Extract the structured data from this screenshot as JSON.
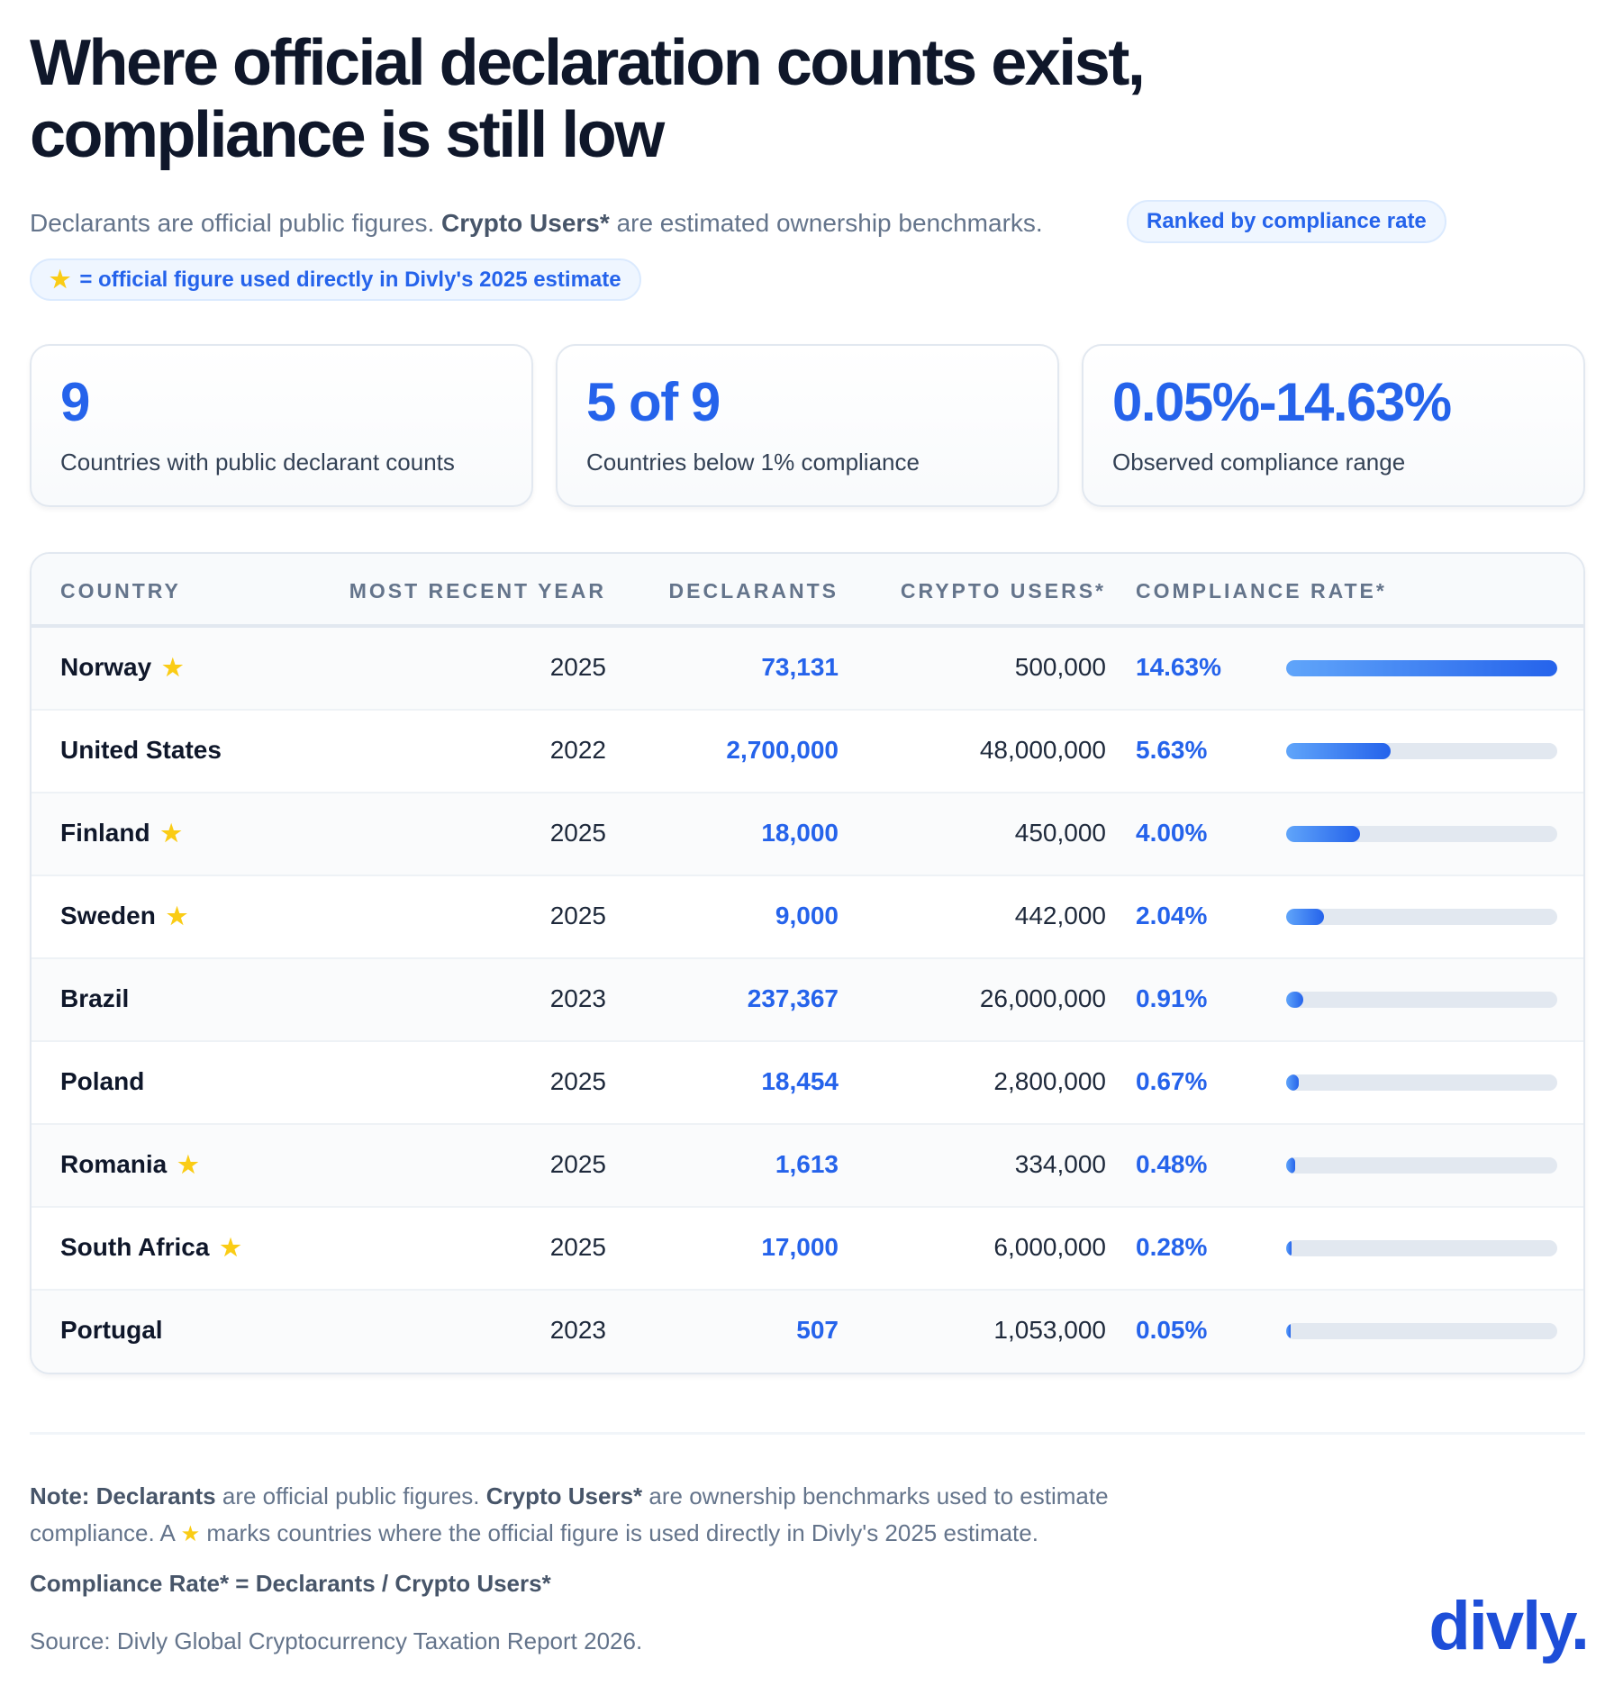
{
  "title": "Where official declaration counts exist, compliance is still low",
  "subtitle": {
    "part1": "Declarants are official public figures.",
    "bold": "Crypto Users*",
    "part2": "are estimated ownership benchmarks."
  },
  "ranked_pill": "Ranked by compliance rate",
  "star_pill": "= official figure used directly in Divly's 2025 estimate",
  "cards": [
    {
      "value": "9",
      "label": "Countries with public declarant counts"
    },
    {
      "value": "5 of 9",
      "label": "Countries below 1% compliance"
    },
    {
      "value": "0.05%-14.63%",
      "label": "Observed compliance range"
    }
  ],
  "colors": {
    "accent": "#2563eb",
    "star": "#facc15",
    "track": "#e2e8f0"
  },
  "chart_data": {
    "type": "table",
    "columns": [
      "COUNTRY",
      "MOST RECENT YEAR",
      "DECLARANTS",
      "CRYPTO USERS*",
      "COMPLIANCE RATE*"
    ],
    "bar_max": 14.63,
    "rows": [
      {
        "country": "Norway",
        "star": true,
        "year": "2025",
        "declarants": "73,131",
        "users": "500,000",
        "rate_label": "14.63%",
        "rate": 14.63
      },
      {
        "country": "United States",
        "star": false,
        "year": "2022",
        "declarants": "2,700,000",
        "users": "48,000,000",
        "rate_label": "5.63%",
        "rate": 5.63
      },
      {
        "country": "Finland",
        "star": true,
        "year": "2025",
        "declarants": "18,000",
        "users": "450,000",
        "rate_label": "4.00%",
        "rate": 4.0
      },
      {
        "country": "Sweden",
        "star": true,
        "year": "2025",
        "declarants": "9,000",
        "users": "442,000",
        "rate_label": "2.04%",
        "rate": 2.04
      },
      {
        "country": "Brazil",
        "star": false,
        "year": "2023",
        "declarants": "237,367",
        "users": "26,000,000",
        "rate_label": "0.91%",
        "rate": 0.91
      },
      {
        "country": "Poland",
        "star": false,
        "year": "2025",
        "declarants": "18,454",
        "users": "2,800,000",
        "rate_label": "0.67%",
        "rate": 0.67
      },
      {
        "country": "Romania",
        "star": true,
        "year": "2025",
        "declarants": "1,613",
        "users": "334,000",
        "rate_label": "0.48%",
        "rate": 0.48
      },
      {
        "country": "South Africa",
        "star": true,
        "year": "2025",
        "declarants": "17,000",
        "users": "6,000,000",
        "rate_label": "0.28%",
        "rate": 0.28
      },
      {
        "country": "Portugal",
        "star": false,
        "year": "2023",
        "declarants": "507",
        "users": "1,053,000",
        "rate_label": "0.05%",
        "rate": 0.05
      }
    ]
  },
  "notes": {
    "line1_bold1": "Note: Declarants",
    "line1_a": "are official public figures.",
    "line1_bold2": "Crypto Users*",
    "line1_b": "are ownership benchmarks used to estimate",
    "line2_a": "compliance. A",
    "line2_b": "marks countries where the official figure is used directly in Divly's 2025 estimate.",
    "formula": "Compliance Rate* = Declarants / Crypto Users*",
    "source": "Source: Divly Global Cryptocurrency Taxation Report 2026."
  },
  "logo": "divly."
}
